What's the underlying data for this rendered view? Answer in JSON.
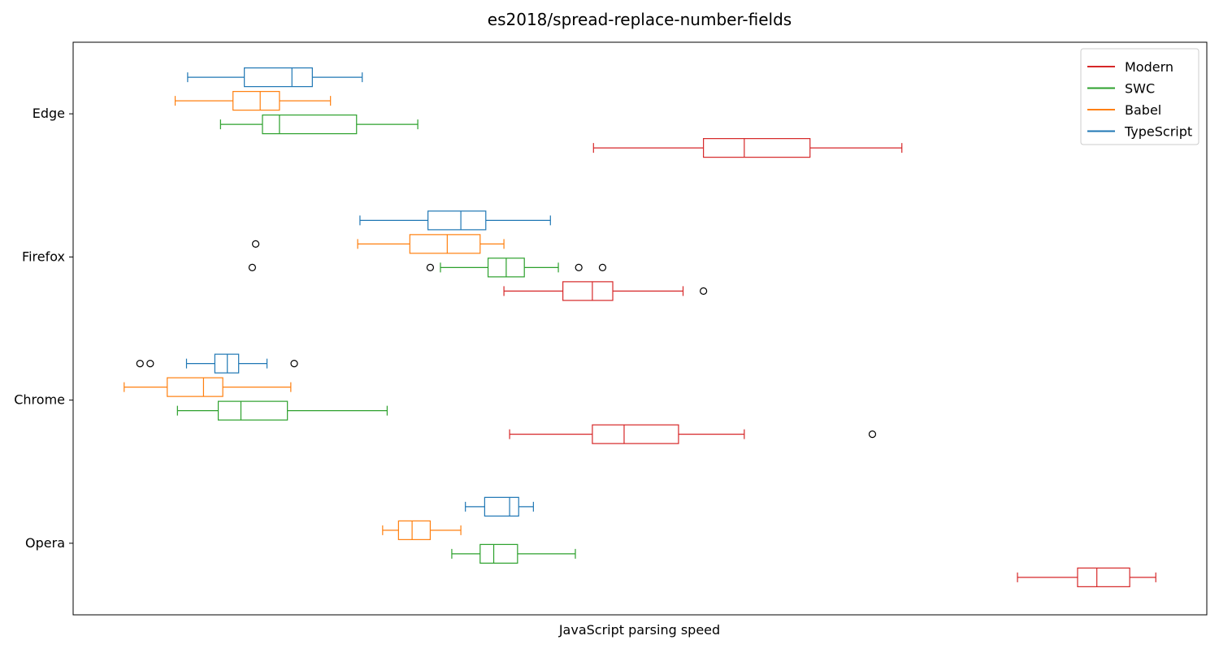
{
  "chart_data": {
    "type": "boxplot",
    "orientation": "horizontal",
    "title": "es2018/spread-replace-number-fields",
    "xlabel": "JavaScript parsing speed",
    "ylabel": "",
    "x_ticks_shown": false,
    "xlim": [
      0,
      100
    ],
    "categories": [
      "Edge",
      "Firefox",
      "Chrome",
      "Opera"
    ],
    "legend": {
      "placement": "top-right"
    },
    "series": [
      {
        "name": "TypeScript",
        "color": "#1f77b4",
        "boxes": [
          {
            "whisker_low": 10.1,
            "q1": 15.1,
            "median": 19.3,
            "q3": 21.1,
            "whisker_high": 25.5,
            "outliers": []
          },
          {
            "whisker_low": 25.3,
            "q1": 31.3,
            "median": 34.2,
            "q3": 36.4,
            "whisker_high": 42.1,
            "outliers": []
          },
          {
            "whisker_low": 10.0,
            "q1": 12.5,
            "median": 13.6,
            "q3": 14.6,
            "whisker_high": 17.1,
            "outliers": [
              5.9,
              6.8,
              19.5
            ]
          },
          {
            "whisker_low": 34.6,
            "q1": 36.3,
            "median": 38.5,
            "q3": 39.3,
            "whisker_high": 40.6,
            "outliers": []
          }
        ]
      },
      {
        "name": "Babel",
        "color": "#ff7f0e",
        "boxes": [
          {
            "whisker_low": 9.0,
            "q1": 14.1,
            "median": 16.5,
            "q3": 18.2,
            "whisker_high": 22.7,
            "outliers": []
          },
          {
            "whisker_low": 25.1,
            "q1": 29.7,
            "median": 33.0,
            "q3": 35.9,
            "whisker_high": 38.0,
            "outliers": [
              16.1
            ]
          },
          {
            "whisker_low": 4.5,
            "q1": 8.3,
            "median": 11.5,
            "q3": 13.2,
            "whisker_high": 19.2,
            "outliers": []
          },
          {
            "whisker_low": 27.3,
            "q1": 28.7,
            "median": 29.9,
            "q3": 31.5,
            "whisker_high": 34.2,
            "outliers": []
          }
        ]
      },
      {
        "name": "SWC",
        "color": "#2ca02c",
        "boxes": [
          {
            "whisker_low": 13.0,
            "q1": 16.7,
            "median": 18.2,
            "q3": 25.0,
            "whisker_high": 30.4,
            "outliers": []
          },
          {
            "whisker_low": 32.4,
            "q1": 36.6,
            "median": 38.2,
            "q3": 39.8,
            "whisker_high": 42.8,
            "outliers": [
              15.8,
              31.5,
              44.6,
              46.7
            ]
          },
          {
            "whisker_low": 9.2,
            "q1": 12.8,
            "median": 14.8,
            "q3": 18.9,
            "whisker_high": 27.7,
            "outliers": []
          },
          {
            "whisker_low": 33.4,
            "q1": 35.9,
            "median": 37.1,
            "q3": 39.2,
            "whisker_high": 44.3,
            "outliers": []
          }
        ]
      },
      {
        "name": "Modern",
        "color": "#d62728",
        "boxes": [
          {
            "whisker_low": 45.9,
            "q1": 55.6,
            "median": 59.2,
            "q3": 65.0,
            "whisker_high": 73.1,
            "outliers": []
          },
          {
            "whisker_low": 38.0,
            "q1": 43.2,
            "median": 45.8,
            "q3": 47.6,
            "whisker_high": 53.8,
            "outliers": [
              55.6
            ]
          },
          {
            "whisker_low": 38.5,
            "q1": 45.8,
            "median": 48.6,
            "q3": 53.4,
            "whisker_high": 59.2,
            "outliers": [
              70.5
            ]
          },
          {
            "whisker_low": 83.3,
            "q1": 88.6,
            "median": 90.3,
            "q3": 93.2,
            "whisker_high": 95.5,
            "outliers": []
          }
        ]
      }
    ]
  }
}
